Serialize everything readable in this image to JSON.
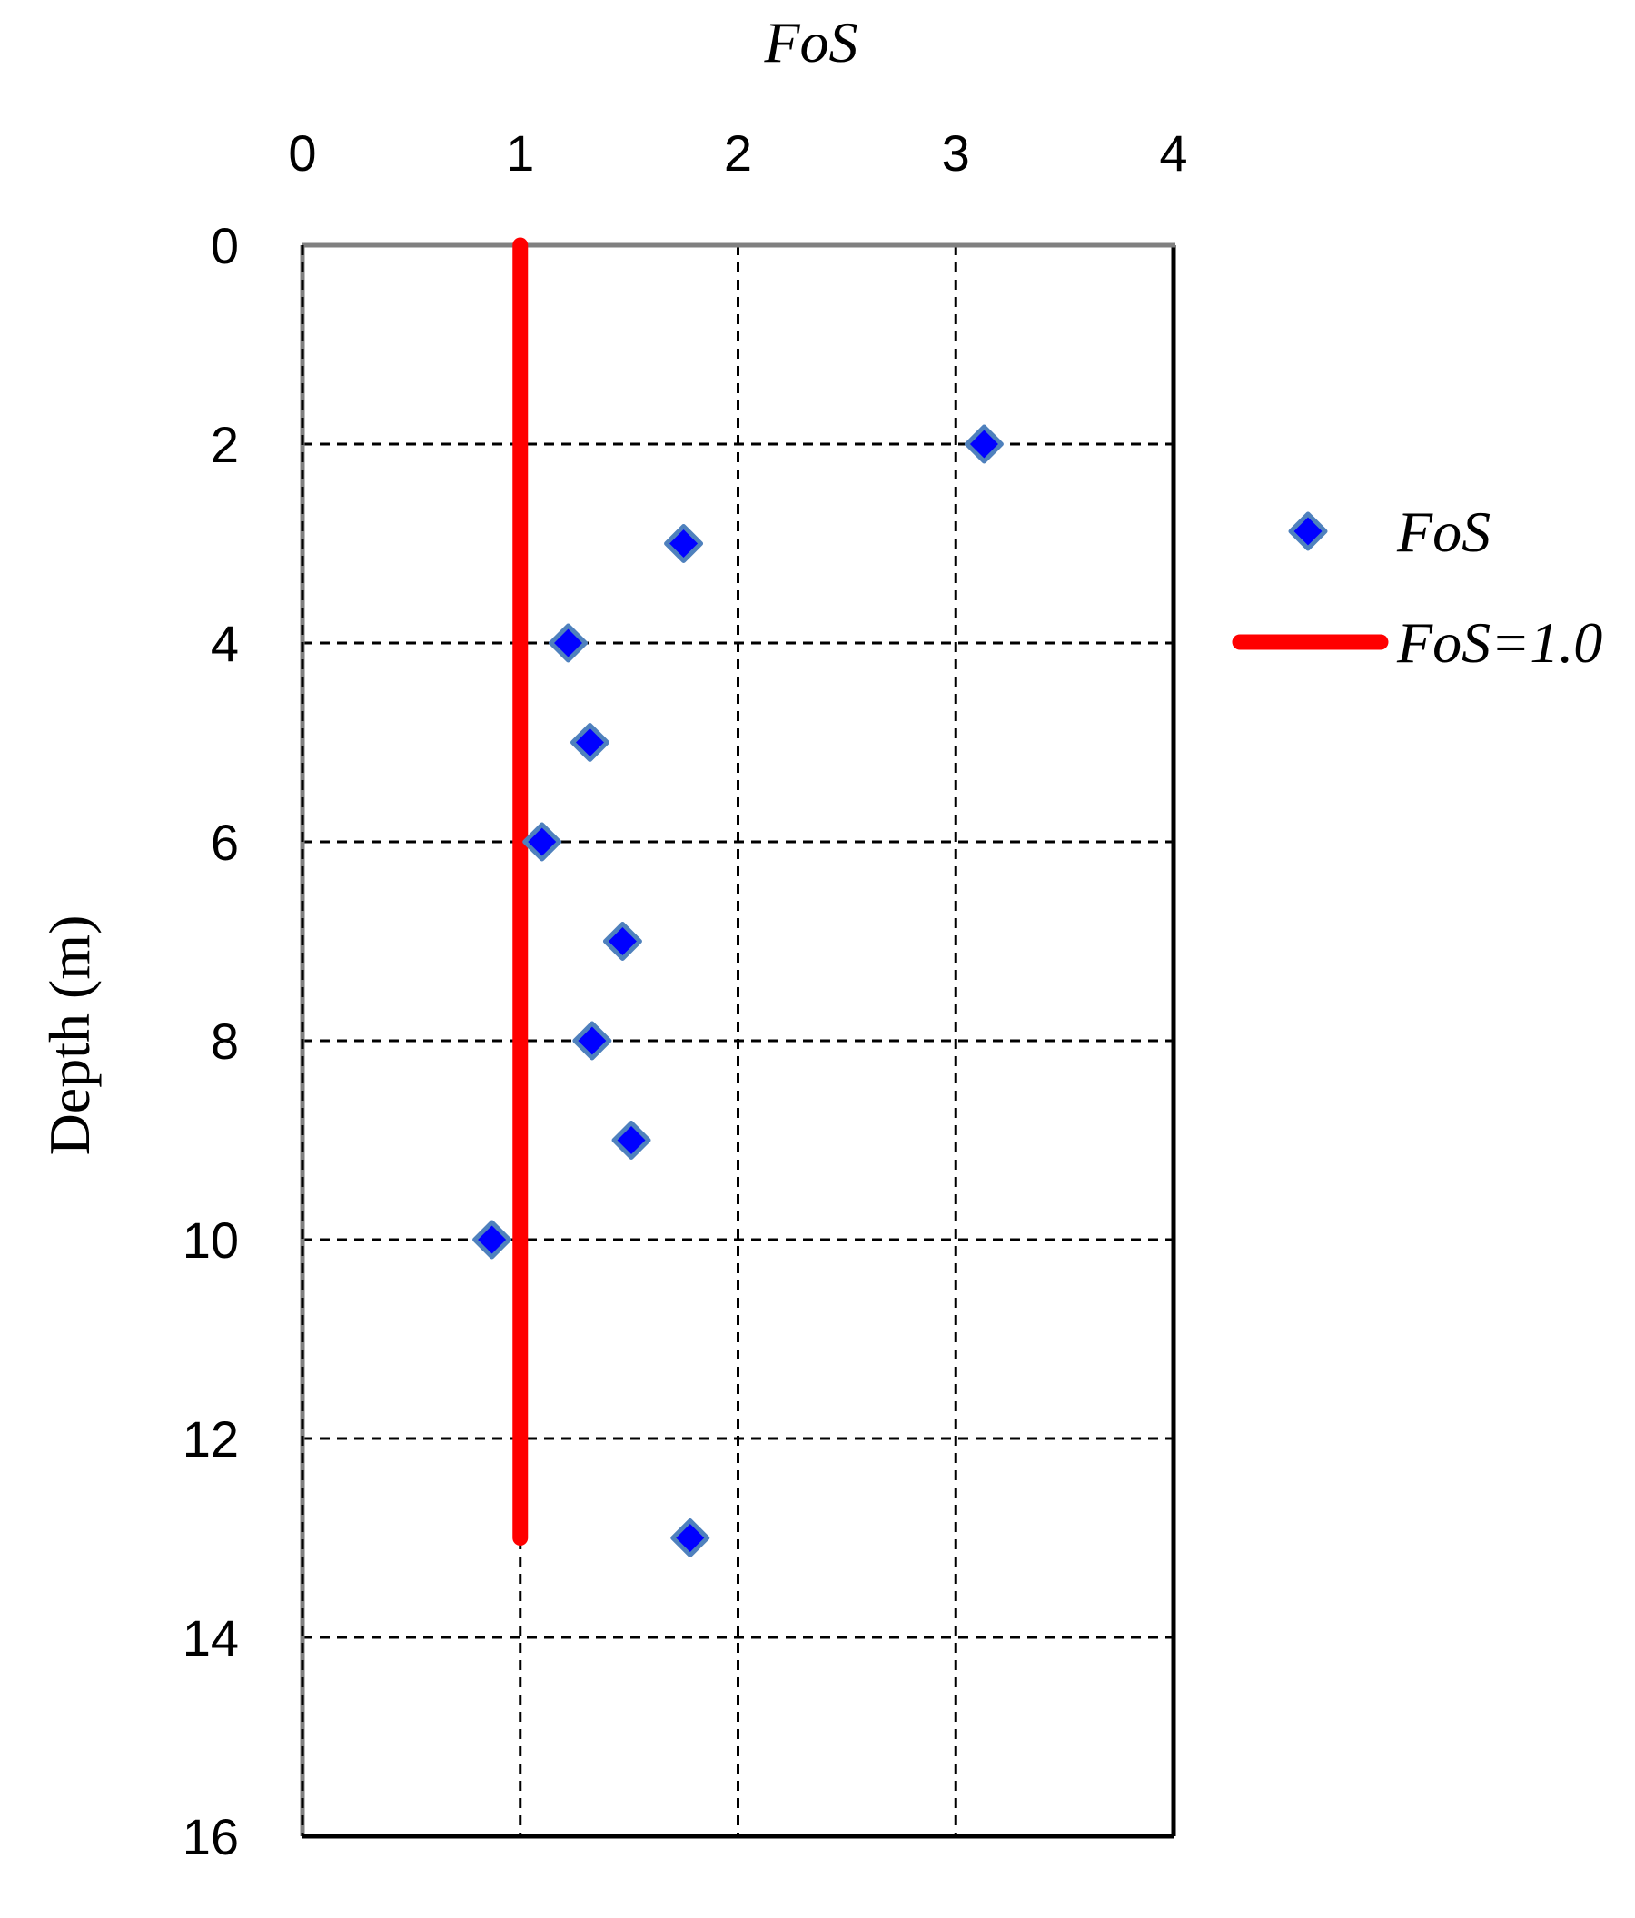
{
  "chart_data": {
    "type": "scatter",
    "xlabel": "FoS",
    "ylabel": "Depth (m)",
    "xlim": [
      0,
      4
    ],
    "ylim": [
      16,
      0
    ],
    "y_reversed": true,
    "x_axis_position": "top",
    "xticks": [
      "0",
      "1",
      "2",
      "3",
      "4"
    ],
    "yticks": [
      "0",
      "2",
      "4",
      "6",
      "8",
      "10",
      "12",
      "14",
      "16"
    ],
    "grid": true,
    "legend_position": "right",
    "series": [
      {
        "name": "FoS",
        "kind": "scatter",
        "marker": "diamond",
        "color": "#0000FF",
        "edge_color": "#4F81BD",
        "x": [
          3.13,
          1.75,
          1.22,
          1.32,
          1.1,
          1.47,
          1.33,
          1.51,
          0.87,
          1.78
        ],
        "y": [
          2,
          3,
          4,
          5,
          6,
          7,
          8,
          9,
          10,
          13
        ]
      },
      {
        "name": "FoS=1.0",
        "kind": "line",
        "color": "#FF0000",
        "x": [
          1.0,
          1.0
        ],
        "y": [
          0,
          13
        ]
      }
    ]
  }
}
